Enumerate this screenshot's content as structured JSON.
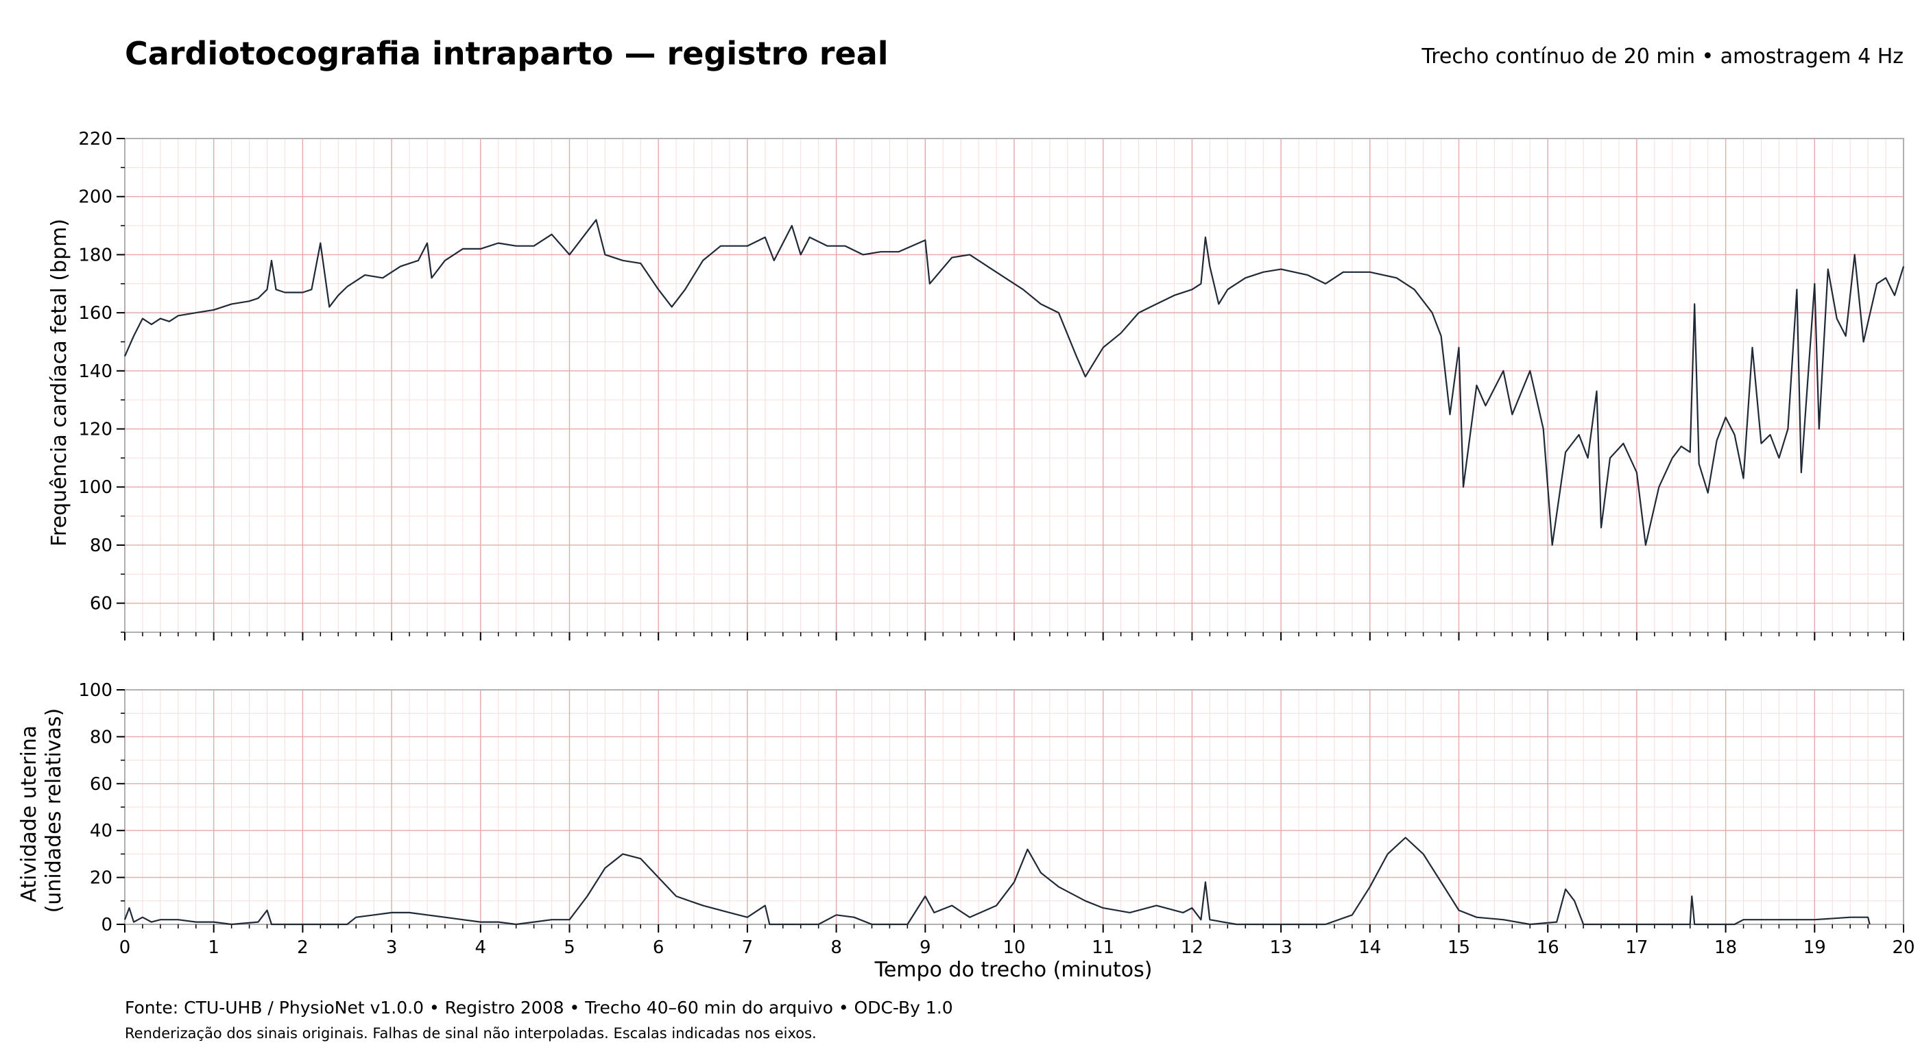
{
  "title": "Cardiotocografia intraparto — registro real",
  "subtitle": "Trecho contínuo de 20 min • amostragem 4 Hz",
  "footer": {
    "source": "Fonte: CTU-UHB / PhysioNet v1.0.0 • Registro 2008 • Trecho 40–60 min do arquivo • ODC-By 1.0",
    "note": "Renderização dos sinais originais. Falhas de sinal não interpoladas. Escalas indicadas nos eixos."
  },
  "colors": {
    "trace": "#1f2a36",
    "grid_major": "#e6a9a9",
    "grid_minor": "#f6dede",
    "axis_frame": "#b0b0b0"
  },
  "chart_data": [
    {
      "type": "line",
      "name": "fhr",
      "ylabel": "Frequência cardíaca fetal (bpm)",
      "xlabel": "",
      "xlim": [
        0,
        20
      ],
      "ylim": [
        50,
        220
      ],
      "yticks": [
        60,
        80,
        100,
        120,
        140,
        160,
        180,
        200,
        220
      ],
      "grid": true,
      "points": [
        [
          0,
          145
        ],
        [
          0.1,
          152
        ],
        [
          0.2,
          158
        ],
        [
          0.3,
          156
        ],
        [
          0.4,
          158
        ],
        [
          0.5,
          157
        ],
        [
          0.6,
          159
        ],
        [
          0.8,
          160
        ],
        [
          1.0,
          161
        ],
        [
          1.2,
          163
        ],
        [
          1.4,
          164
        ],
        [
          1.5,
          165
        ],
        [
          1.6,
          168
        ],
        [
          1.65,
          178
        ],
        [
          1.7,
          168
        ],
        [
          1.8,
          167
        ],
        [
          2.0,
          167
        ],
        [
          2.1,
          168
        ],
        [
          2.2,
          184
        ],
        [
          2.3,
          162
        ],
        [
          2.4,
          166
        ],
        [
          2.5,
          169
        ],
        [
          2.7,
          173
        ],
        [
          2.9,
          172
        ],
        [
          3.1,
          176
        ],
        [
          3.3,
          178
        ],
        [
          3.4,
          184
        ],
        [
          3.45,
          172
        ],
        [
          3.6,
          178
        ],
        [
          3.8,
          182
        ],
        [
          4.0,
          182
        ],
        [
          4.2,
          184
        ],
        [
          4.4,
          183
        ],
        [
          4.6,
          183
        ],
        [
          4.8,
          187
        ],
        [
          5.0,
          180
        ],
        [
          5.3,
          192
        ],
        [
          5.4,
          180
        ],
        [
          5.6,
          178
        ],
        [
          5.8,
          177
        ],
        [
          6.0,
          168
        ],
        [
          6.15,
          162
        ],
        [
          6.3,
          168
        ],
        [
          6.5,
          178
        ],
        [
          6.7,
          183
        ],
        [
          7.0,
          183
        ],
        [
          7.2,
          186
        ],
        [
          7.3,
          178
        ],
        [
          7.5,
          190
        ],
        [
          7.6,
          180
        ],
        [
          7.7,
          186
        ],
        [
          7.9,
          183
        ],
        [
          8.1,
          183
        ],
        [
          8.3,
          180
        ],
        [
          8.5,
          181
        ],
        [
          8.7,
          181
        ],
        [
          9.0,
          185
        ],
        [
          9.05,
          170
        ],
        [
          9.3,
          179
        ],
        [
          9.5,
          180
        ],
        [
          9.7,
          176
        ],
        [
          9.9,
          172
        ],
        [
          10.1,
          168
        ],
        [
          10.3,
          163
        ],
        [
          10.5,
          160
        ],
        [
          10.7,
          145
        ],
        [
          10.8,
          138
        ],
        [
          11.0,
          148
        ],
        [
          11.2,
          153
        ],
        [
          11.4,
          160
        ],
        [
          11.6,
          163
        ],
        [
          11.8,
          166
        ],
        [
          12.0,
          168
        ],
        [
          12.1,
          170
        ],
        [
          12.15,
          186
        ],
        [
          12.2,
          176
        ],
        [
          12.3,
          163
        ],
        [
          12.4,
          168
        ],
        [
          12.6,
          172
        ],
        [
          12.8,
          174
        ],
        [
          13.0,
          175
        ],
        [
          13.3,
          173
        ],
        [
          13.5,
          170
        ],
        [
          13.7,
          174
        ],
        [
          14.0,
          174
        ],
        [
          14.3,
          172
        ],
        [
          14.5,
          168
        ],
        [
          14.7,
          160
        ],
        [
          14.8,
          152
        ],
        [
          14.9,
          125
        ],
        [
          15.0,
          148
        ],
        [
          15.05,
          100
        ],
        [
          15.2,
          135
        ],
        [
          15.3,
          128
        ],
        [
          15.5,
          140
        ],
        [
          15.6,
          125
        ],
        [
          15.8,
          140
        ],
        [
          15.95,
          120
        ],
        [
          16.05,
          80
        ],
        [
          16.2,
          112
        ],
        [
          16.35,
          118
        ],
        [
          16.45,
          110
        ],
        [
          16.55,
          133
        ],
        [
          16.6,
          86
        ],
        [
          16.7,
          110
        ],
        [
          16.85,
          115
        ],
        [
          17.0,
          105
        ],
        [
          17.1,
          80
        ],
        [
          17.25,
          100
        ],
        [
          17.4,
          110
        ],
        [
          17.5,
          114
        ],
        [
          17.6,
          112
        ],
        [
          17.65,
          163
        ],
        [
          17.7,
          108
        ],
        [
          17.8,
          98
        ],
        [
          17.9,
          116
        ],
        [
          18.0,
          124
        ],
        [
          18.1,
          118
        ],
        [
          18.2,
          103
        ],
        [
          18.3,
          148
        ],
        [
          18.4,
          115
        ],
        [
          18.5,
          118
        ],
        [
          18.6,
          110
        ],
        [
          18.7,
          120
        ],
        [
          18.8,
          168
        ],
        [
          18.85,
          105
        ],
        [
          19.0,
          170
        ],
        [
          19.05,
          120
        ],
        [
          19.15,
          175
        ],
        [
          19.25,
          158
        ],
        [
          19.35,
          152
        ],
        [
          19.45,
          180
        ],
        [
          19.55,
          150
        ],
        [
          19.7,
          170
        ],
        [
          19.8,
          172
        ],
        [
          19.9,
          166
        ],
        [
          20.0,
          176
        ]
      ]
    },
    {
      "type": "line",
      "name": "ua",
      "ylabel": "Atividade uterina\n(unidades relativas)",
      "xlabel": "Tempo do trecho (minutos)",
      "xlim": [
        0,
        20
      ],
      "ylim": [
        0,
        100
      ],
      "xticks": [
        0,
        1,
        2,
        3,
        4,
        5,
        6,
        7,
        8,
        9,
        10,
        11,
        12,
        13,
        14,
        15,
        16,
        17,
        18,
        19,
        20
      ],
      "yticks": [
        0,
        20,
        40,
        60,
        80,
        100
      ],
      "grid": true,
      "points": [
        [
          0,
          2
        ],
        [
          0.05,
          7
        ],
        [
          0.1,
          1
        ],
        [
          0.2,
          3
        ],
        [
          0.3,
          1
        ],
        [
          0.4,
          2
        ],
        [
          0.6,
          2
        ],
        [
          0.8,
          1
        ],
        [
          1.0,
          1
        ],
        [
          1.2,
          0
        ],
        [
          1.5,
          1
        ],
        [
          1.6,
          6
        ],
        [
          1.65,
          0
        ],
        [
          2.5,
          0
        ],
        [
          2.6,
          3
        ],
        [
          2.8,
          4
        ],
        [
          3.0,
          5
        ],
        [
          3.2,
          5
        ],
        [
          3.4,
          4
        ],
        [
          3.6,
          3
        ],
        [
          3.8,
          2
        ],
        [
          4.0,
          1
        ],
        [
          4.2,
          1
        ],
        [
          4.4,
          0
        ],
        [
          4.6,
          1
        ],
        [
          4.8,
          2
        ],
        [
          5.0,
          2
        ],
        [
          5.2,
          12
        ],
        [
          5.4,
          24
        ],
        [
          5.6,
          30
        ],
        [
          5.8,
          28
        ],
        [
          6.0,
          20
        ],
        [
          6.2,
          12
        ],
        [
          6.5,
          8
        ],
        [
          6.8,
          5
        ],
        [
          7.0,
          3
        ],
        [
          7.2,
          8
        ],
        [
          7.25,
          0
        ],
        [
          7.8,
          0
        ],
        [
          8.0,
          4
        ],
        [
          8.2,
          3
        ],
        [
          8.4,
          0
        ],
        [
          8.8,
          0
        ],
        [
          9.0,
          12
        ],
        [
          9.1,
          5
        ],
        [
          9.3,
          8
        ],
        [
          9.5,
          3
        ],
        [
          9.8,
          8
        ],
        [
          10.0,
          18
        ],
        [
          10.15,
          32
        ],
        [
          10.3,
          22
        ],
        [
          10.5,
          16
        ],
        [
          10.8,
          10
        ],
        [
          11.0,
          7
        ],
        [
          11.3,
          5
        ],
        [
          11.6,
          8
        ],
        [
          11.9,
          5
        ],
        [
          12.0,
          7
        ],
        [
          12.1,
          2
        ],
        [
          12.15,
          18
        ],
        [
          12.2,
          2
        ],
        [
          12.5,
          0
        ],
        [
          13.5,
          0
        ],
        [
          13.8,
          4
        ],
        [
          14.0,
          16
        ],
        [
          14.2,
          30
        ],
        [
          14.4,
          37
        ],
        [
          14.6,
          30
        ],
        [
          14.8,
          18
        ],
        [
          15.0,
          6
        ],
        [
          15.2,
          3
        ],
        [
          15.5,
          2
        ],
        [
          15.8,
          0
        ],
        [
          16.1,
          1
        ],
        [
          16.2,
          15
        ],
        [
          16.3,
          10
        ],
        [
          16.4,
          0
        ],
        [
          17.6,
          0
        ],
        [
          17.62,
          12
        ],
        [
          17.65,
          0
        ],
        [
          18.1,
          0
        ],
        [
          18.2,
          2
        ],
        [
          18.6,
          2
        ],
        [
          19.0,
          2
        ],
        [
          19.4,
          3
        ],
        [
          19.6,
          3
        ],
        [
          19.62,
          0
        ]
      ]
    }
  ]
}
